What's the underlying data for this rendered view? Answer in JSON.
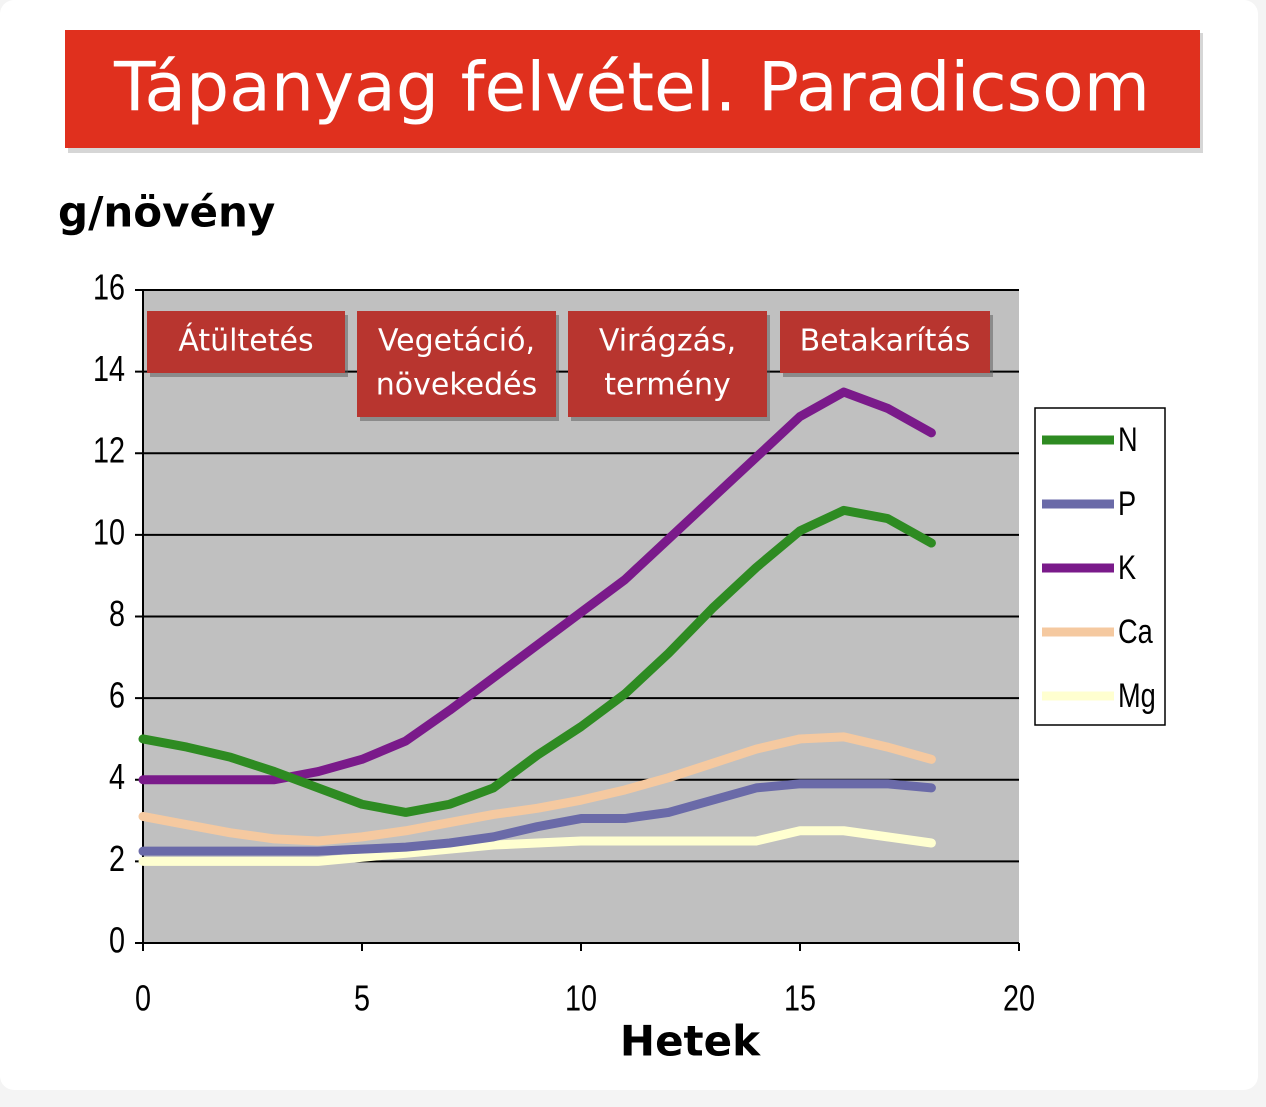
{
  "chart_data": {
    "type": "line",
    "title": "Tápanyag felvétel.  Paradicsom",
    "y_label": "g/növény",
    "x_label": "Hetek",
    "annotations": [
      [
        "Átültetés"
      ],
      [
        "Vegetáció,",
        "növekedés"
      ],
      [
        "Virágzás,",
        "termény"
      ],
      [
        "Betakarítás"
      ]
    ],
    "x": [
      0,
      1,
      2,
      3,
      4,
      5,
      6,
      7,
      8,
      9,
      10,
      11,
      12,
      13,
      14,
      15,
      16,
      17,
      18
    ],
    "series": [
      {
        "name": "N",
        "color": "#2e8b22",
        "values": [
          5.0,
          4.8,
          4.55,
          4.2,
          3.8,
          3.4,
          3.2,
          3.4,
          3.8,
          4.6,
          5.3,
          6.1,
          7.1,
          8.2,
          9.2,
          10.1,
          10.6,
          10.4,
          9.8
        ]
      },
      {
        "name": "P",
        "color": "#6a6aa8",
        "values": [
          2.25,
          2.25,
          2.25,
          2.25,
          2.25,
          2.3,
          2.35,
          2.45,
          2.6,
          2.85,
          3.05,
          3.05,
          3.2,
          3.5,
          3.8,
          3.9,
          3.9,
          3.9,
          3.8
        ]
      },
      {
        "name": "K",
        "color": "#7a1a8a",
        "values": [
          4.0,
          4.0,
          4.0,
          4.0,
          4.2,
          4.5,
          4.95,
          5.7,
          6.5,
          7.3,
          8.1,
          8.9,
          9.9,
          10.9,
          11.9,
          12.9,
          13.5,
          13.1,
          12.5
        ]
      },
      {
        "name": "Ca",
        "color": "#f5c9a0",
        "values": [
          3.1,
          2.9,
          2.7,
          2.55,
          2.5,
          2.6,
          2.75,
          2.95,
          3.15,
          3.3,
          3.5,
          3.75,
          4.05,
          4.4,
          4.75,
          5.0,
          5.05,
          4.8,
          4.5
        ]
      },
      {
        "name": "Mg",
        "color": "#ffffd0",
        "values": [
          2.0,
          2.0,
          2.0,
          2.0,
          2.0,
          2.1,
          2.2,
          2.3,
          2.4,
          2.45,
          2.5,
          2.5,
          2.5,
          2.5,
          2.5,
          2.75,
          2.75,
          2.6,
          2.45
        ]
      }
    ],
    "xlim": [
      0,
      20
    ],
    "ylim": [
      0,
      16
    ],
    "xticks": [
      0,
      5,
      10,
      15,
      20
    ],
    "yticks": [
      0,
      2,
      4,
      6,
      8,
      10,
      12,
      14,
      16
    ],
    "grid": true,
    "legend": "right"
  }
}
